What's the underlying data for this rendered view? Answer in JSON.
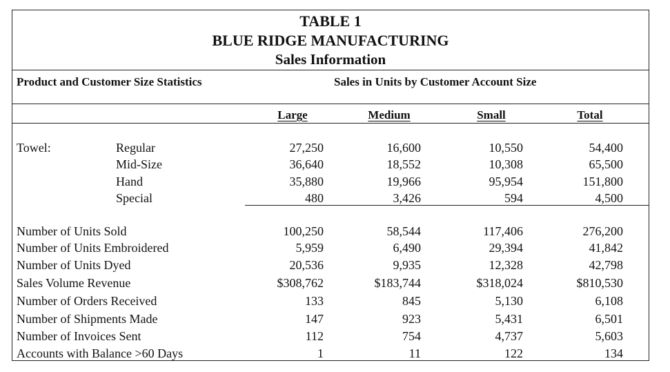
{
  "title": {
    "line1": "TABLE 1",
    "line2": "BLUE RIDGE MANUFACTURING",
    "line3": "Sales Information"
  },
  "section_headers": {
    "left": "Product and Customer Size Statistics",
    "right": "Sales in Units by Customer Account Size"
  },
  "columns": [
    "Large",
    "Medium",
    "Small",
    "Total"
  ],
  "towel": {
    "label": "Towel:",
    "rows": [
      {
        "label": "Regular",
        "values": [
          "27,250",
          "16,600",
          "10,550",
          "54,400"
        ]
      },
      {
        "label": "Mid-Size",
        "values": [
          "36,640",
          "18,552",
          "10,308",
          "65,500"
        ]
      },
      {
        "label": "Hand",
        "values": [
          "35,880",
          "19,966",
          "95,954",
          "151,800"
        ]
      },
      {
        "label": "Special",
        "values": [
          "480",
          "3,426",
          "594",
          "4,500"
        ]
      }
    ]
  },
  "stats": [
    {
      "label": "Number of Units Sold",
      "values": [
        "100,250",
        "58,544",
        "117,406",
        "276,200"
      ]
    },
    {
      "label": "Number of Units Embroidered",
      "values": [
        "5,959",
        "6,490",
        "29,394",
        "41,842"
      ]
    },
    {
      "label": "Number of Units Dyed",
      "values": [
        "20,536",
        "9,935",
        "12,328",
        "42,798"
      ]
    },
    {
      "label": "Sales Volume Revenue",
      "values": [
        "$308,762",
        "$183,744",
        "$318,024",
        "$810,530"
      ]
    },
    {
      "label": "Number of Orders Received",
      "values": [
        "133",
        "845",
        "5,130",
        "6,108"
      ]
    },
    {
      "label": "Number of Shipments Made",
      "values": [
        "147",
        "923",
        "5,431",
        "6,501"
      ]
    },
    {
      "label": "Number of Invoices Sent",
      "values": [
        "112",
        "754",
        "4,737",
        "5,603"
      ]
    },
    {
      "label": "Accounts with Balance >60 Days",
      "values": [
        "1",
        "11",
        "122",
        "134"
      ]
    }
  ]
}
